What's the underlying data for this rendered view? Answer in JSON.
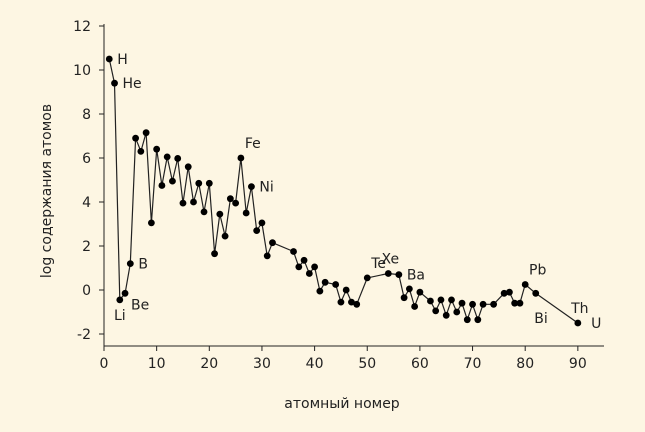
{
  "chart_data": {
    "type": "line",
    "title": "",
    "xlabel": "атомный номер",
    "ylabel": "log содержания атомов",
    "xlim": [
      0,
      95
    ],
    "ylim": [
      -2.5,
      12
    ],
    "xticks": [
      0,
      10,
      20,
      30,
      40,
      50,
      60,
      70,
      80,
      90
    ],
    "xtick_labels": [
      "0",
      "10",
      "20",
      "30",
      "40",
      "50",
      "60",
      "70",
      "80",
      "90"
    ],
    "yticks": [
      -2,
      0,
      2,
      4,
      6,
      8,
      10,
      12
    ],
    "ytick_labels": [
      "-2",
      "0",
      "2",
      "4",
      "6",
      "8",
      "10",
      "12"
    ],
    "grid": false,
    "colors": {
      "background": "#fdf6e3",
      "line": "#222222",
      "marker": "#000000"
    },
    "series": [
      {
        "x": [
          1,
          2,
          3,
          4,
          5,
          6,
          7,
          8,
          9,
          10,
          11,
          12,
          13,
          14,
          15,
          16,
          17,
          18,
          19,
          20,
          21,
          22,
          23,
          24,
          25,
          26,
          27,
          28,
          29,
          30,
          31,
          32,
          36,
          37,
          38,
          39,
          40,
          41,
          42,
          44,
          45,
          46,
          47,
          48,
          50,
          54,
          56,
          57,
          58,
          59,
          60,
          62,
          63,
          64,
          65,
          66,
          67,
          68,
          69,
          70,
          71,
          72,
          74,
          76,
          77,
          78,
          79,
          80,
          82,
          90
        ],
        "y": [
          10.5,
          9.4,
          -0.45,
          -0.15,
          1.2,
          6.9,
          6.3,
          7.15,
          3.05,
          6.4,
          4.75,
          6.05,
          4.95,
          5.98,
          3.95,
          5.6,
          4.0,
          4.85,
          3.55,
          4.85,
          1.65,
          3.45,
          2.45,
          4.15,
          3.95,
          6.0,
          3.5,
          4.7,
          2.7,
          3.05,
          1.55,
          2.15,
          1.75,
          1.05,
          1.35,
          0.75,
          1.05,
          -0.05,
          0.35,
          0.25,
          -0.55,
          0.0,
          -0.55,
          -0.65,
          0.55,
          0.75,
          0.7,
          -0.35,
          0.05,
          -0.75,
          -0.1,
          -0.5,
          -0.95,
          -0.45,
          -1.15,
          -0.45,
          -1.0,
          -0.6,
          -1.35,
          -0.65,
          -1.35,
          -0.65,
          -0.65,
          -0.15,
          -0.1,
          -0.6,
          -0.6,
          0.25,
          -0.15,
          -1.5
        ]
      }
    ],
    "annotations": [
      {
        "text": "H",
        "x": 1,
        "y": 10.5,
        "side": "right"
      },
      {
        "text": "He",
        "x": 2,
        "y": 9.4,
        "side": "right"
      },
      {
        "text": "Li",
        "x": 3,
        "y": -0.45,
        "side": "below"
      },
      {
        "text": "Be",
        "x": 4,
        "y": -0.15,
        "side": "right-below"
      },
      {
        "text": "B",
        "x": 5,
        "y": 1.2,
        "side": "right"
      },
      {
        "text": "Fe",
        "x": 26,
        "y": 6.0,
        "side": "above-right"
      },
      {
        "text": "Ni",
        "x": 28,
        "y": 4.7,
        "side": "right"
      },
      {
        "text": "Te",
        "x": 50,
        "y": 0.55,
        "side": "above-right"
      },
      {
        "text": "Xe",
        "x": 54,
        "y": 0.75,
        "side": "above"
      },
      {
        "text": "Ba",
        "x": 56,
        "y": 0.7,
        "side": "right"
      },
      {
        "text": "Pb",
        "x": 82,
        "y": 0.25,
        "side": "above"
      },
      {
        "text": "Bi",
        "x": 83,
        "y": -0.6,
        "side": "below"
      },
      {
        "text": "Th",
        "x": 90,
        "y": -1.5,
        "side": "above"
      },
      {
        "text": "U",
        "x": 91,
        "y": -1.5,
        "side": "right"
      }
    ]
  }
}
